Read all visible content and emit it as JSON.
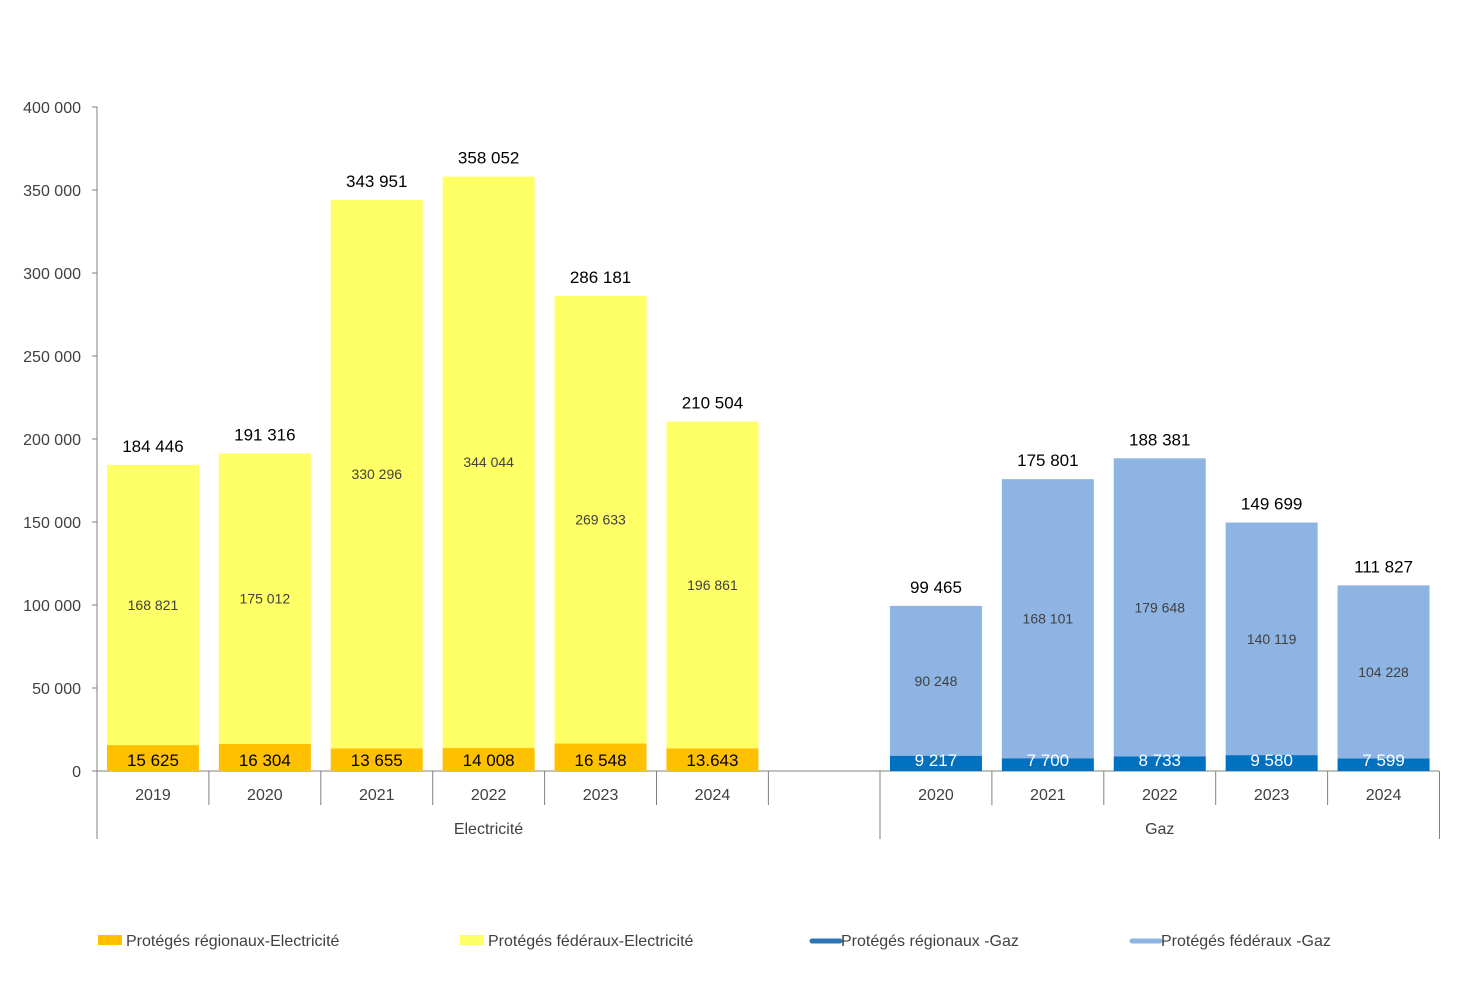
{
  "chart_data": {
    "type": "bar",
    "stacked": true,
    "title": "",
    "ylim": [
      0,
      400000
    ],
    "yticks": [
      "0",
      "50 000",
      "100 000",
      "150 000",
      "200 000",
      "250 000",
      "300 000",
      "350 000",
      "400 000"
    ],
    "ytick_values": [
      0,
      50000,
      100000,
      150000,
      200000,
      250000,
      300000,
      350000,
      400000
    ],
    "groups": [
      {
        "name": "Electricité",
        "categories": [
          "2019",
          "2020",
          "2021",
          "2022",
          "2023",
          "2024"
        ],
        "series": [
          {
            "name": "Protégés régionaux-Electricité",
            "color": "#FFC000",
            "values": [
              15625,
              16304,
              13655,
              14008,
              16548,
              13643
            ],
            "labels": [
              "15 625",
              "16 304",
              "13 655",
              "14 008",
              "16 548",
              "13.643"
            ]
          },
          {
            "name": "Protégés fédéraux-Electricité",
            "color": "#FFFF66",
            "values": [
              168821,
              175012,
              330296,
              344044,
              269633,
              196861
            ],
            "labels": [
              "168 821",
              "175 012",
              "330 296",
              "344 044",
              "269 633",
              "196 861"
            ]
          }
        ],
        "totals": [
          184446,
          191316,
          343951,
          358052,
          286181,
          210504
        ],
        "total_labels": [
          "184 446",
          "191 316",
          "343 951",
          "358 052",
          "286 181",
          "210 504"
        ]
      },
      {
        "name": "Gaz",
        "categories": [
          "2020",
          "2021",
          "2022",
          "2023",
          "2024"
        ],
        "series": [
          {
            "name": "Protégés régionaux -Gaz",
            "color": "#0070C0",
            "values": [
              9217,
              7700,
              8733,
              9580,
              7599
            ],
            "labels": [
              "9 217",
              "7 700",
              "8 733",
              "9 580",
              "7 599"
            ]
          },
          {
            "name": "Protégés fédéraux -Gaz",
            "color": "#8EB4E3",
            "values": [
              90248,
              168101,
              179648,
              140119,
              104228
            ],
            "labels": [
              "90 248",
              "168 101",
              "179 648",
              "140 119",
              "104 228"
            ]
          }
        ],
        "totals": [
          99465,
          175801,
          188381,
          149699,
          111827
        ],
        "total_labels": [
          "99 465",
          "175 801",
          "188 381",
          "149 699",
          "111 827"
        ]
      }
    ],
    "legend": [
      {
        "name": "Protégés régionaux-Electricité",
        "color": "#FFC000",
        "marker": "rect"
      },
      {
        "name": "Protégés fédéraux-Electricité",
        "color": "#FFFF66",
        "marker": "rect"
      },
      {
        "name": "Protégés régionaux -Gaz",
        "color": "#2E75B6",
        "marker": "line"
      },
      {
        "name": "Protégés fédéraux -Gaz",
        "color": "#8EB4E3",
        "marker": "line"
      }
    ],
    "legend_position": "bottom"
  }
}
